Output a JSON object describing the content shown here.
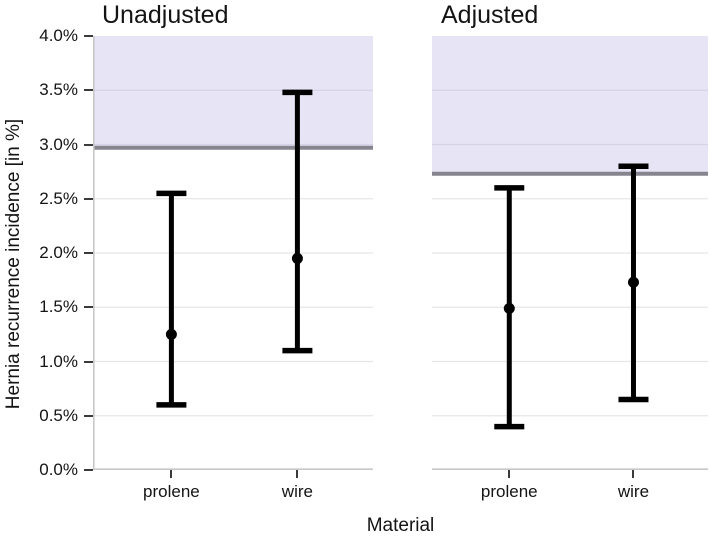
{
  "chart_data": {
    "type": "errorbar",
    "xlabel": "Material",
    "ylabel": "Hernia recurrence incidence [in %]",
    "categories": [
      "prolene",
      "wire"
    ],
    "ylim": [
      0,
      4
    ],
    "ytick_values": [
      4.0,
      3.5,
      3.0,
      2.5,
      2.0,
      1.5,
      1.0,
      0.5,
      0.0
    ],
    "ytick_labels": [
      "4.0%",
      "3.5%",
      "3.0%",
      "2.5%",
      "2.0%",
      "1.5%",
      "1.0%",
      "0.5%",
      "0.0%"
    ],
    "grid": true,
    "legend": "none",
    "panels": [
      {
        "title": "Unadjusted",
        "reference_line": 2.97,
        "shaded_band": {
          "from": 2.97,
          "to": 4.0
        },
        "series": [
          {
            "category": "prolene",
            "estimate": 1.25,
            "ci_low": 0.6,
            "ci_high": 2.55
          },
          {
            "category": "wire",
            "estimate": 1.95,
            "ci_low": 1.1,
            "ci_high": 3.48
          }
        ]
      },
      {
        "title": "Adjusted",
        "reference_line": 2.73,
        "shaded_band": {
          "from": 2.73,
          "to": 4.0
        },
        "series": [
          {
            "category": "prolene",
            "estimate": 1.49,
            "ci_low": 0.4,
            "ci_high": 2.6
          },
          {
            "category": "wire",
            "estimate": 1.73,
            "ci_low": 0.65,
            "ci_high": 2.8
          }
        ]
      }
    ],
    "colors": {
      "band": "#e6e4f5",
      "reference_line": "#86848e",
      "errorbar": "#000000",
      "gridline": "#e6e6e6",
      "gridline_in_band": "#d4d3e8",
      "axis_line": "#c8c8c8",
      "tick_mark": "#3a3a3a",
      "text": "#141414",
      "background": "#ffffff"
    }
  }
}
